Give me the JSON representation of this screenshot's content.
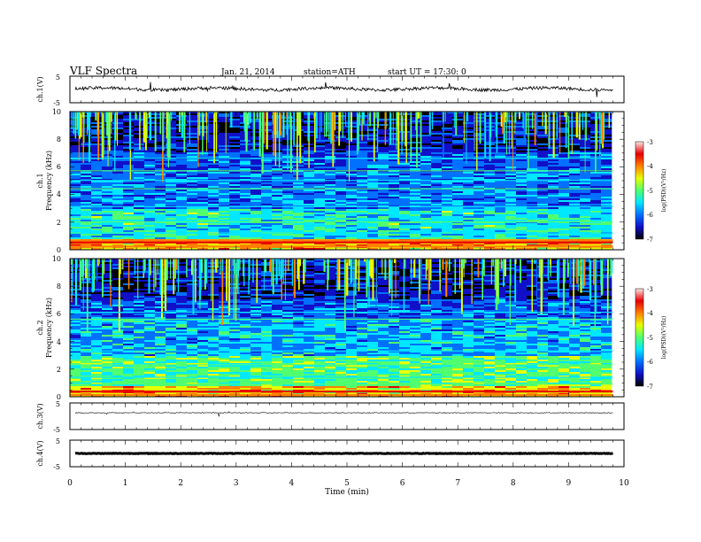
{
  "header": {
    "title": "VLF  Spectra",
    "date": "Jan. 21, 2014",
    "station": "station=ATH",
    "start": "start  UT  =    17:30: 0"
  },
  "chart_data": [
    {
      "type": "line",
      "ylabel": "ch.1(V)",
      "ylim": [
        -5,
        5
      ],
      "ytick_labels": [
        "5",
        "-5"
      ],
      "baseline": 0.2,
      "noise": "high"
    },
    {
      "type": "heatmap",
      "ylabel_lines": [
        "ch.1",
        "Frequency  (kHz)"
      ],
      "ylim": [
        0,
        10
      ],
      "ytick_labels": [
        "0",
        "2",
        "4",
        "6",
        "8",
        "10"
      ],
      "colorbar": {
        "label": "log(PSD)(V²/Hz)",
        "range": [
          -7,
          -3
        ],
        "tick_labels": [
          "-3",
          "-4",
          "-5",
          "-6",
          "-7"
        ]
      }
    },
    {
      "type": "heatmap",
      "ylabel_lines": [
        "ch.2",
        "Frequency  (kHz)"
      ],
      "ylim": [
        0,
        10
      ],
      "ytick_labels": [
        "0",
        "2",
        "4",
        "6",
        "8",
        "10"
      ],
      "colorbar": {
        "label": "log(PSD)(V²/Hz)",
        "range": [
          -7,
          -3
        ],
        "tick_labels": [
          "-3",
          "-4",
          "-5",
          "-6",
          "-7"
        ]
      }
    },
    {
      "type": "line",
      "ylabel": "ch.3(V)",
      "ylim": [
        -5,
        5
      ],
      "ytick_labels": [
        "5",
        "-5"
      ],
      "baseline": 1.3,
      "noise": "low"
    },
    {
      "type": "line",
      "ylabel": "ch.4(V)",
      "ylim": [
        -5,
        5
      ],
      "ytick_labels": [
        "5",
        "-5"
      ],
      "baseline": 0,
      "noise": "flat"
    }
  ],
  "xaxis": {
    "label": "Time  (min)",
    "xlim": [
      0,
      10
    ],
    "data_end": 9.8,
    "tick_labels": [
      "0",
      "1",
      "2",
      "3",
      "4",
      "5",
      "6",
      "7",
      "8",
      "9",
      "10"
    ]
  },
  "colors": {
    "colormap": [
      "#000000",
      "#1010c8",
      "#0070ff",
      "#00e8ff",
      "#50ff70",
      "#e8ff00",
      "#ff8000",
      "#e80000",
      "#ffe8e8"
    ]
  }
}
